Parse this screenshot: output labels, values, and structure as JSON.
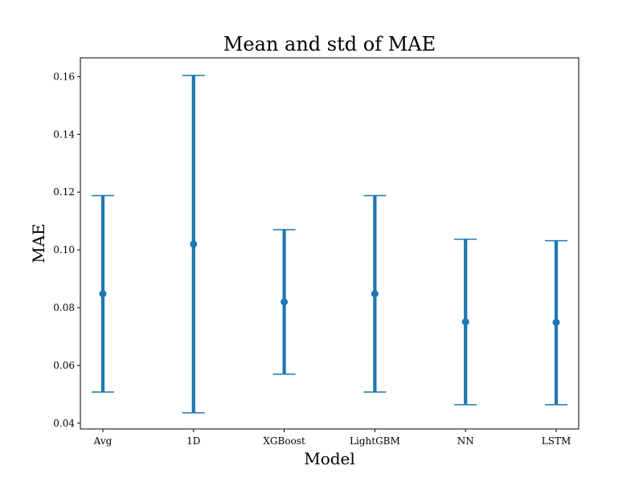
{
  "chart_data": {
    "type": "scatter",
    "title": "Mean and std of MAE",
    "xlabel": "Model",
    "ylabel": "MAE",
    "categories": [
      "Avg",
      "1D",
      "XGBoost",
      "LightGBM",
      "NN",
      "LSTM"
    ],
    "means": [
      0.0848,
      0.102,
      0.082,
      0.0848,
      0.0751,
      0.0749
    ],
    "lower": [
      0.0508,
      0.0436,
      0.057,
      0.0508,
      0.0464,
      0.0464
    ],
    "upper": [
      0.1188,
      0.1604,
      0.107,
      0.1188,
      0.1037,
      0.1032
    ],
    "ylim": [
      0.038,
      0.1665
    ],
    "yticks": [
      "0.04",
      "0.06",
      "0.08",
      "0.10",
      "0.12",
      "0.14",
      "0.16"
    ],
    "grid": false,
    "color": "#1f77b4"
  }
}
